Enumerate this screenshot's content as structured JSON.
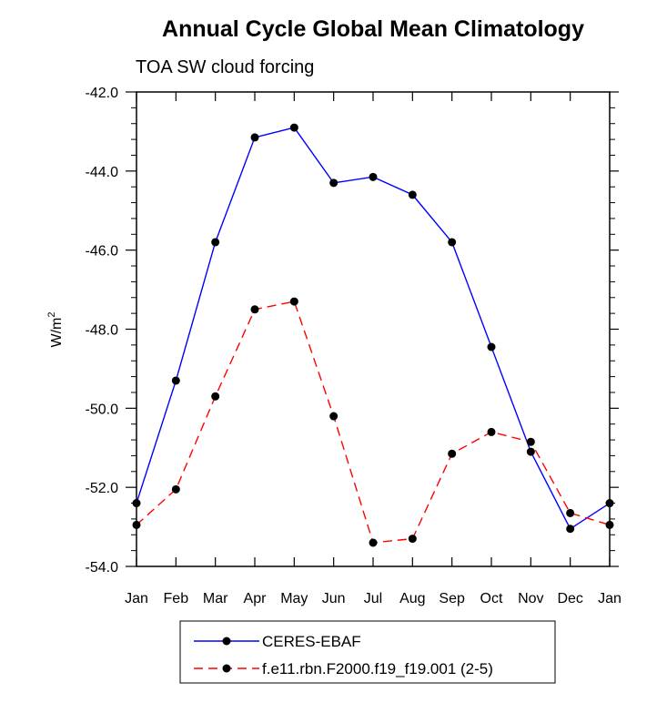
{
  "chart_data": {
    "type": "line",
    "title": "Annual Cycle Global Mean Climatology",
    "subtitle": "TOA SW cloud forcing",
    "ylabel": "W/m",
    "ylabel_superscript": "2",
    "xlabel": "",
    "categories": [
      "Jan",
      "Feb",
      "Mar",
      "Apr",
      "May",
      "Jun",
      "Jul",
      "Aug",
      "Sep",
      "Oct",
      "Nov",
      "Dec",
      "Jan"
    ],
    "ylim": [
      -54.0,
      -42.0
    ],
    "yticks": [
      "-42.0",
      "-44.0",
      "-46.0",
      "-48.0",
      "-50.0",
      "-52.0",
      "-54.0"
    ],
    "ytick_values": [
      -42.0,
      -44.0,
      -46.0,
      -48.0,
      -50.0,
      -52.0,
      -54.0
    ],
    "grid": false,
    "legend_position": "bottom",
    "series": [
      {
        "name": "CERES-EBAF",
        "color": "#0000ff",
        "dash": "solid",
        "marker": "circle",
        "values": [
          -52.4,
          -49.3,
          -45.8,
          -43.15,
          -42.9,
          -44.3,
          -44.15,
          -44.6,
          -45.8,
          -48.45,
          -51.1,
          -53.05,
          -52.4
        ]
      },
      {
        "name": "f.e11.rbn.F2000.f19_f19.001 (2-5)",
        "color": "#ff0000",
        "dash": "dashed",
        "marker": "circle",
        "values": [
          -52.95,
          -52.05,
          -49.7,
          -47.5,
          -47.3,
          -50.2,
          -53.4,
          -53.3,
          -51.15,
          -50.6,
          -50.85,
          -52.65,
          -52.95
        ]
      }
    ]
  }
}
